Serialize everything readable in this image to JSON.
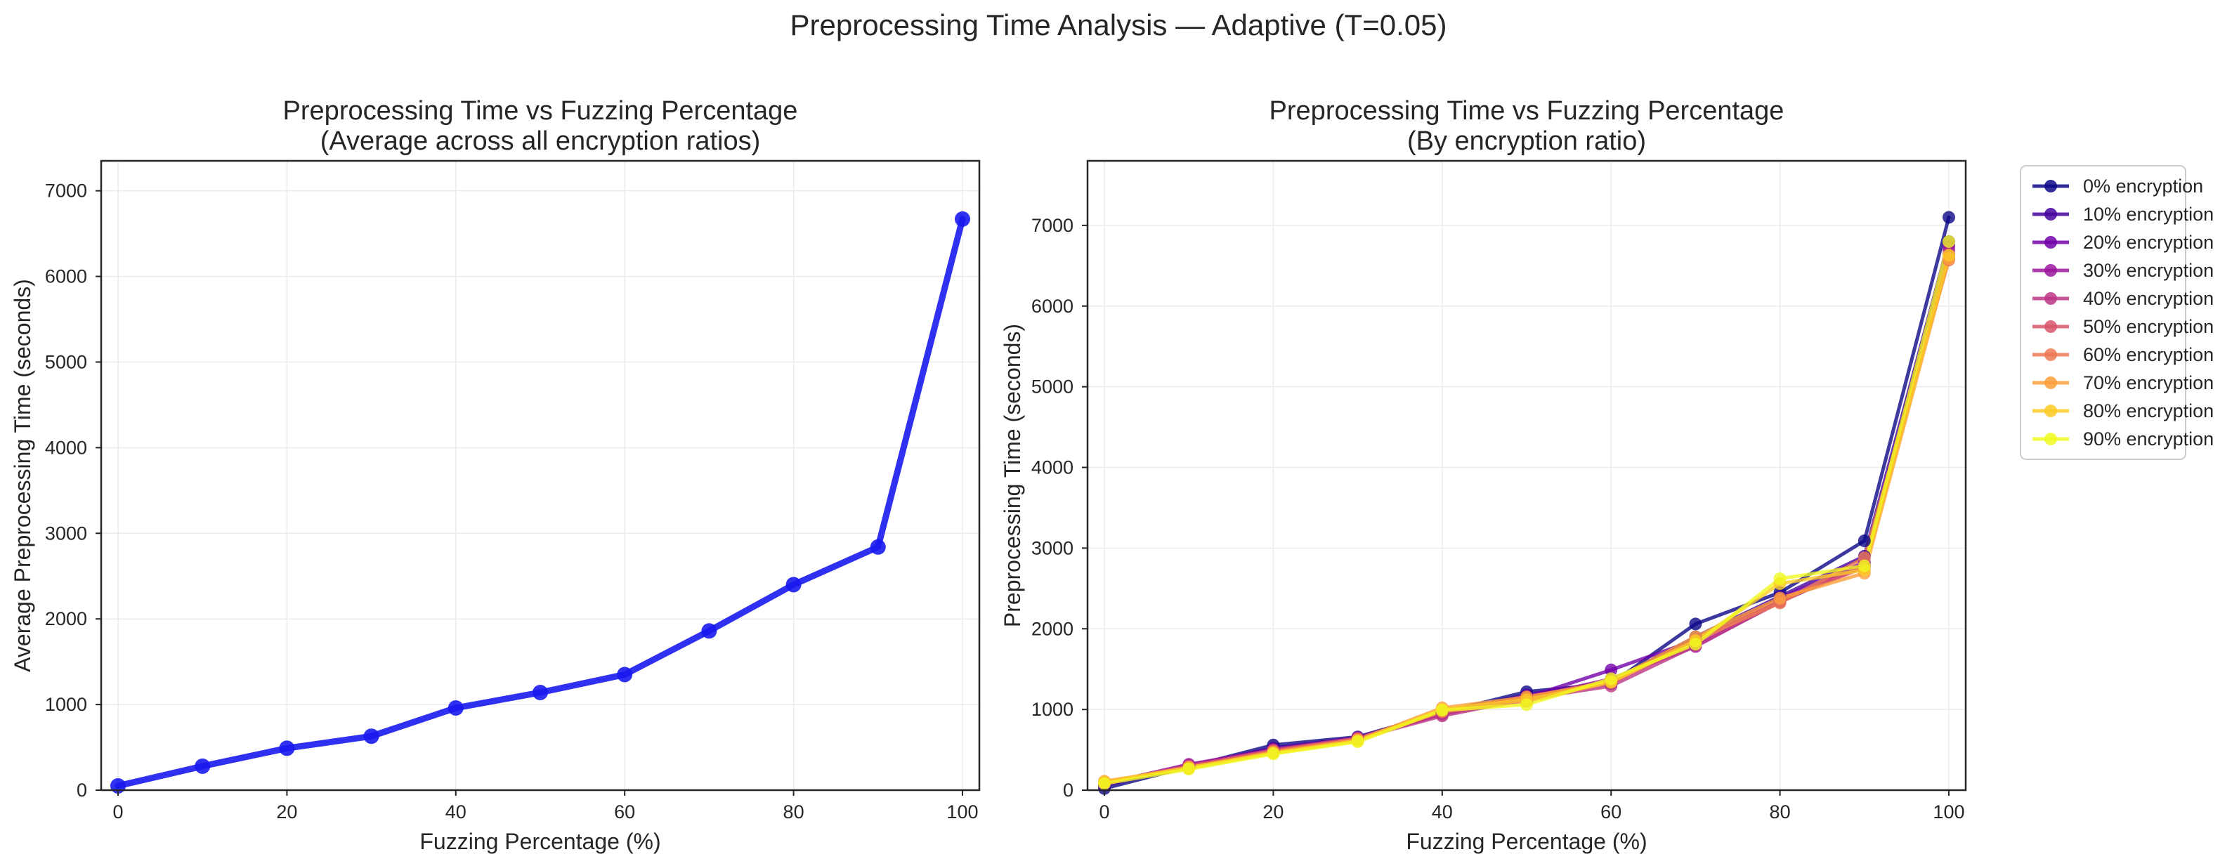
{
  "figure": {
    "suptitle": "Preprocessing Time Analysis — Adaptive (T=0.05)"
  },
  "chart_data": [
    {
      "type": "line",
      "title_line1": "Preprocessing Time vs Fuzzing Percentage",
      "title_line2": "(Average across all encryption ratios)",
      "xlabel": "Fuzzing Percentage (%)",
      "ylabel": "Average Preprocessing Time (seconds)",
      "xlim": [
        -2,
        102
      ],
      "ylim": [
        0,
        7350
      ],
      "xticks": [
        0,
        20,
        40,
        60,
        80,
        100
      ],
      "yticks": [
        0,
        1000,
        2000,
        3000,
        4000,
        5000,
        6000,
        7000
      ],
      "grid": true,
      "series": [
        {
          "name": "",
          "color": "#1a1aee",
          "x": [
            0,
            10,
            20,
            30,
            40,
            50,
            60,
            70,
            80,
            90,
            100
          ],
          "y": [
            50,
            280,
            490,
            630,
            960,
            1140,
            1350,
            1860,
            2400,
            2840,
            6670
          ]
        }
      ]
    },
    {
      "type": "line",
      "title_line1": "Preprocessing Time vs Fuzzing Percentage",
      "title_line2": "(By encryption ratio)",
      "xlabel": "Fuzzing Percentage (%)",
      "ylabel": "Preprocessing Time (seconds)",
      "xlim": [
        -2,
        102
      ],
      "ylim": [
        0,
        7800
      ],
      "xticks": [
        0,
        20,
        40,
        60,
        80,
        100
      ],
      "yticks": [
        0,
        1000,
        2000,
        3000,
        4000,
        5000,
        6000,
        7000
      ],
      "grid": true,
      "legend": "outside-upper-right",
      "x": [
        0,
        10,
        20,
        30,
        40,
        50,
        60,
        70,
        80,
        90,
        100
      ],
      "series": [
        {
          "name": "0% encryption",
          "color": "#0d0887",
          "y": [
            20,
            290,
            560,
            660,
            960,
            1220,
            1320,
            2060,
            2450,
            3090,
            7100
          ]
        },
        {
          "name": "10% encryption",
          "color": "#46039f",
          "y": [
            60,
            300,
            520,
            650,
            960,
            1180,
            1350,
            1900,
            2400,
            2900,
            6800
          ]
        },
        {
          "name": "20% encryption",
          "color": "#7201a8",
          "y": [
            70,
            310,
            510,
            640,
            950,
            1150,
            1490,
            1860,
            2380,
            2820,
            6750
          ]
        },
        {
          "name": "30% encryption",
          "color": "#9c179e",
          "y": [
            80,
            320,
            500,
            650,
            940,
            1140,
            1380,
            1780,
            2340,
            2780,
            6700
          ]
        },
        {
          "name": "40% encryption",
          "color": "#bd3786",
          "y": [
            90,
            290,
            500,
            640,
            920,
            1130,
            1290,
            1790,
            2330,
            2800,
            6650
          ]
        },
        {
          "name": "50% encryption",
          "color": "#d8576b",
          "y": [
            90,
            300,
            490,
            640,
            980,
            1160,
            1330,
            1840,
            2360,
            2760,
            6620
          ]
        },
        {
          "name": "60% encryption",
          "color": "#ed7953",
          "y": [
            100,
            280,
            480,
            630,
            970,
            1100,
            1340,
            1860,
            2320,
            2880,
            6570
          ]
        },
        {
          "name": "70% encryption",
          "color": "#fb9f3a",
          "y": [
            110,
            270,
            470,
            620,
            1020,
            1150,
            1350,
            1900,
            2380,
            2690,
            6590
          ]
        },
        {
          "name": "80% encryption",
          "color": "#fdca26",
          "y": [
            100,
            280,
            460,
            610,
            1000,
            1120,
            1340,
            1850,
            2560,
            2730,
            6630
          ]
        },
        {
          "name": "90% encryption",
          "color": "#f0f921",
          "y": [
            80,
            260,
            450,
            600,
            990,
            1060,
            1380,
            1810,
            2620,
            2780,
            6800
          ]
        }
      ]
    }
  ]
}
